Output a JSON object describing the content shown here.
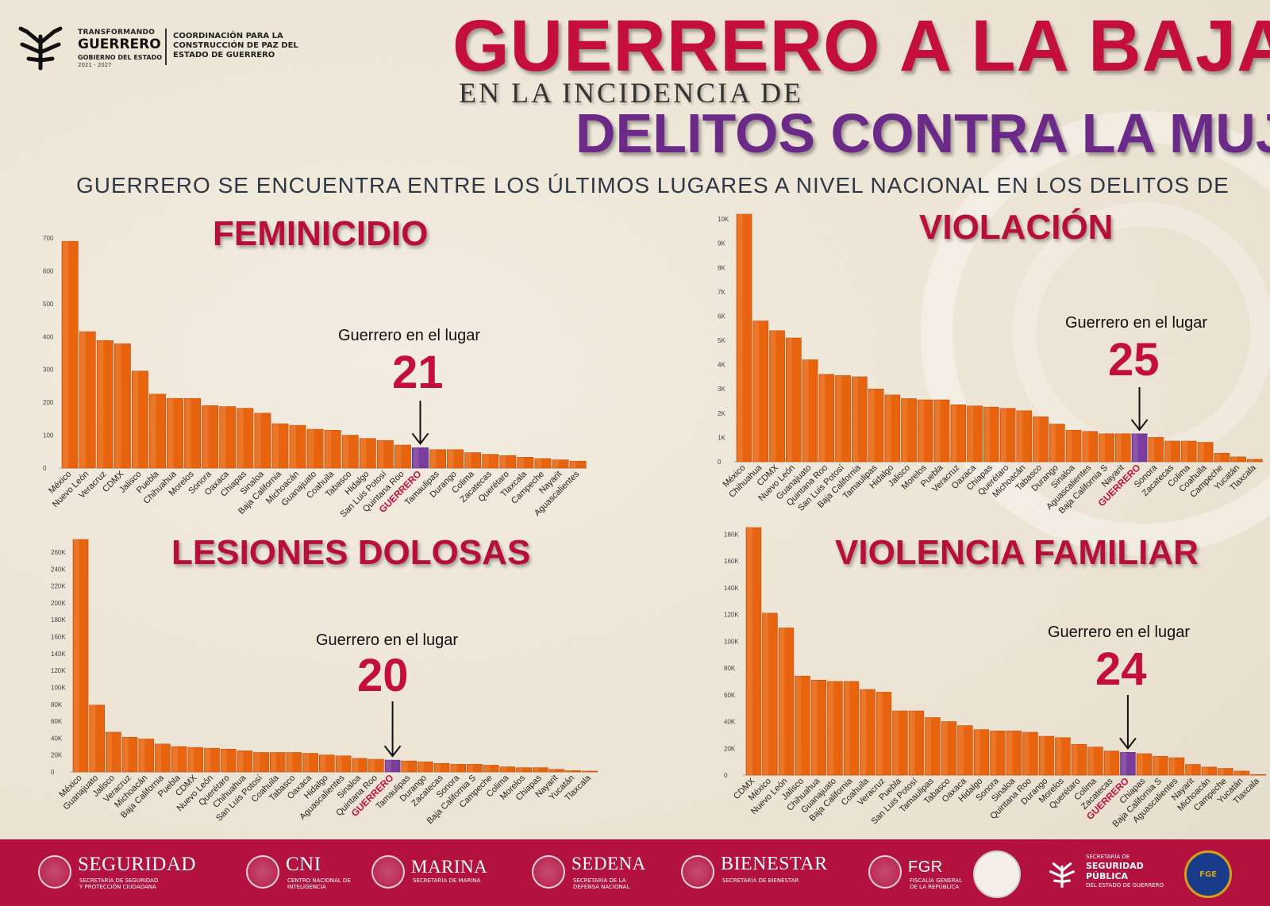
{
  "header": {
    "logo_line1": "TRANSFORMANDO",
    "logo_line2": "GUERRERO",
    "logo_line3": "GOBIERNO DEL ESTADO",
    "logo_line4": "2021 - 2027",
    "coordination": "COORDINACIÓN PARA LA CONSTRUCCIÓN DE PAZ DEL ESTADO DE GUERRERO"
  },
  "titles": {
    "main": "GUERRERO A LA BAJA",
    "sub": "EN LA INCIDENCIA DE",
    "purple": "DELITOS CONTRA LA MUJER",
    "subtitle": "GUERRERO SE ENCUENTRA ENTRE LOS ÚLTIMOS LUGARES A NIVEL NACIONAL EN LOS DELITOS DE"
  },
  "colors": {
    "bar": "#e8630d",
    "bar_highlight": "#7a3d9e",
    "accent_red": "#c40f3c",
    "purple": "#6b2a87",
    "footer": "#b3123f"
  },
  "chart_data": [
    {
      "type": "bar",
      "title": "FEMINICIDIO",
      "highlight_label": "GUERRERO",
      "annotation_text": "Guerrero en el lugar",
      "annotation_rank": "21",
      "ylim": [
        0,
        700
      ],
      "yticks": [
        "0",
        "100",
        "200",
        "300",
        "400",
        "500",
        "600",
        "700"
      ],
      "ytick_values": [
        0,
        100,
        200,
        300,
        400,
        500,
        600,
        700
      ],
      "categories": [
        "México",
        "Nuevo León",
        "Veracruz",
        "CDMX",
        "Jalisco",
        "Puebla",
        "Chihuahua",
        "Morelos",
        "Sonora",
        "Oaxaca",
        "Chiapas",
        "Sinaloa",
        "Baja California",
        "Michoacán",
        "Guanajuato",
        "Coahuila",
        "Tabasco",
        "Hidalgo",
        "San Luis Potosí",
        "Quintana Roo",
        "GUERRERO",
        "Tamaulipas",
        "Durango",
        "Colima",
        "Zacatecas",
        "Querétaro",
        "Tlaxcala",
        "Campeche",
        "Nayarit",
        "Aguascalientes"
      ],
      "values": [
        690,
        415,
        388,
        378,
        295,
        225,
        212,
        212,
        190,
        187,
        182,
        167,
        135,
        130,
        118,
        115,
        100,
        90,
        84,
        70,
        62,
        56,
        56,
        47,
        42,
        38,
        33,
        29,
        25,
        21
      ]
    },
    {
      "type": "bar",
      "title": "VIOLACIÓN",
      "highlight_label": "GUERRERO",
      "annotation_text": "Guerrero en el lugar",
      "annotation_rank": "25",
      "ylim": [
        0,
        10200
      ],
      "yticks": [
        "0",
        "1K",
        "2K",
        "3K",
        "4K",
        "5K",
        "6K",
        "7K",
        "8K",
        "9K",
        "10K"
      ],
      "ytick_values": [
        0,
        1000,
        2000,
        3000,
        4000,
        5000,
        6000,
        7000,
        8000,
        9000,
        10000
      ],
      "categories": [
        "México",
        "Chihuahua",
        "CDMX",
        "Nuevo León",
        "Guanajuato",
        "Quintana Roo",
        "San Luis Potosí",
        "Baja California",
        "Tamaulipas",
        "Hidalgo",
        "Jalisco",
        "Morelos",
        "Puebla",
        "Veracruz",
        "Oaxaca",
        "Chiapas",
        "Querétaro",
        "Michoacán",
        "Tabasco",
        "Durango",
        "Sinaloa",
        "Aguascalientes",
        "Baja California S",
        "Nayarit",
        "GUERRERO",
        "Sonora",
        "Zacatecas",
        "Colima",
        "Coahuila",
        "Campeche",
        "Yucatán",
        "Tlaxcala"
      ],
      "values": [
        10200,
        5800,
        5400,
        5100,
        4200,
        3600,
        3550,
        3500,
        3000,
        2750,
        2600,
        2550,
        2550,
        2350,
        2300,
        2250,
        2200,
        2100,
        1850,
        1550,
        1300,
        1250,
        1150,
        1150,
        1150,
        1000,
        850,
        850,
        800,
        350,
        200,
        100
      ]
    },
    {
      "type": "bar",
      "title": "LESIONES DOLOSAS",
      "highlight_label": "GUERRERO",
      "annotation_text": "Guerrero en el lugar",
      "annotation_rank": "20",
      "ylim": [
        0,
        275000
      ],
      "yticks": [
        "0",
        "20K",
        "40K",
        "60K",
        "80K",
        "100K",
        "120K",
        "140K",
        "160K",
        "180K",
        "200K",
        "220K",
        "240K",
        "260K"
      ],
      "ytick_values": [
        0,
        20000,
        40000,
        60000,
        80000,
        100000,
        120000,
        140000,
        160000,
        180000,
        200000,
        220000,
        240000,
        260000
      ],
      "categories": [
        "México",
        "Guanajuato",
        "Jalisco",
        "Veracruz",
        "Michoacán",
        "Baja California",
        "Puebla",
        "CDMX",
        "Nuevo León",
        "Querétaro",
        "Chihuahua",
        "San Luis Potosí",
        "Coahuila",
        "Tabasco",
        "Oaxaca",
        "Hidalgo",
        "Aguascalientes",
        "Sinaloa",
        "Quintana Roo",
        "GUERRERO",
        "Tamaulipas",
        "Durango",
        "Zacatecas",
        "Sonora",
        "Baja California S",
        "Campeche",
        "Colima",
        "Morelos",
        "Chiapas",
        "Nayarit",
        "Yucatán",
        "Tlaxcala"
      ],
      "values": [
        275000,
        79000,
        47000,
        41000,
        39000,
        33000,
        30000,
        29000,
        28000,
        27000,
        25000,
        23000,
        23000,
        23000,
        22000,
        20000,
        19000,
        16000,
        15000,
        14000,
        13000,
        12000,
        10000,
        9000,
        9000,
        8000,
        6000,
        5000,
        5000,
        3000,
        1500,
        1000
      ]
    },
    {
      "type": "bar",
      "title": "VIOLENCIA FAMILIAR",
      "highlight_label": "GUERRERO",
      "annotation_text": "Guerrero en el lugar",
      "annotation_rank": "24",
      "ylim": [
        0,
        185000
      ],
      "yticks": [
        "0",
        "20K",
        "40K",
        "60K",
        "80K",
        "100K",
        "120K",
        "140K",
        "160K",
        "180K"
      ],
      "ytick_values": [
        0,
        20000,
        40000,
        60000,
        80000,
        100000,
        120000,
        140000,
        160000,
        180000
      ],
      "categories": [
        "CDMX",
        "México",
        "Nuevo León",
        "Jalisco",
        "Chihuahua",
        "Guanajuato",
        "Baja California",
        "Coahuila",
        "Veracruz",
        "Puebla",
        "San Luis Potosí",
        "Tamaulipas",
        "Tabasco",
        "Oaxaca",
        "Hidalgo",
        "Sonora",
        "Sinaloa",
        "Quintana Roo",
        "Durango",
        "Morelos",
        "Querétaro",
        "Colima",
        "Zacatecas",
        "GUERRERO",
        "Chiapas",
        "Baja California S",
        "Aguascalientes",
        "Nayarit",
        "Michoacán",
        "Campeche",
        "Yucatán",
        "Tlaxcala"
      ],
      "values": [
        185000,
        121000,
        110000,
        74000,
        71000,
        70000,
        70000,
        64000,
        62000,
        48000,
        48000,
        43000,
        40000,
        37000,
        34000,
        33000,
        33000,
        32000,
        29000,
        28000,
        23000,
        21000,
        18000,
        17000,
        16000,
        14000,
        13000,
        8000,
        6000,
        5000,
        3000,
        500
      ]
    }
  ],
  "footer": [
    {
      "name": "SEGURIDAD",
      "desc1": "SECRETARÍA DE SEGURIDAD",
      "desc2": "Y PROTECCIÓN CIUDADANA"
    },
    {
      "name": "CNI",
      "desc1": "CENTRO NACIONAL DE",
      "desc2": "INTELIGENCIA"
    },
    {
      "name": "MARINA",
      "desc1": "SECRETARÍA DE MARINA",
      "desc2": ""
    },
    {
      "name": "SEDENA",
      "desc1": "SECRETARÍA DE LA",
      "desc2": "DEFENSA NACIONAL"
    },
    {
      "name": "BIENESTAR",
      "desc1": "SECRETARÍA DE BIENESTAR",
      "desc2": ""
    },
    {
      "name": "FGR",
      "desc1": "FISCALÍA GENERAL",
      "desc2": "DE LA REPÚBLICA"
    },
    {
      "name": "",
      "desc1": "",
      "desc2": ""
    },
    {
      "name": "SECRETARÍA DE",
      "desc1": "SEGURIDAD",
      "desc2": "PÚBLICA",
      "desc3": "DEL ESTADO DE GUERRERO"
    },
    {
      "name": "FGE",
      "desc1": "",
      "desc2": ""
    }
  ]
}
